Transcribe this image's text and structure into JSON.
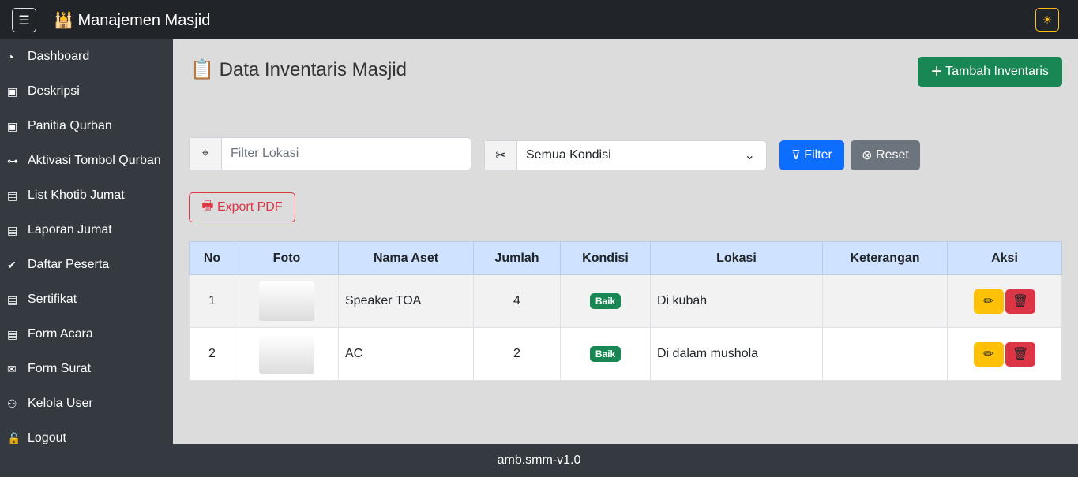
{
  "header": {
    "title": "Manajemen Masjid",
    "menu_icon": "☰",
    "logo_icon": "🕌",
    "theme_icon": "☀"
  },
  "sidebar": {
    "items": [
      {
        "label": "Dashboard",
        "icon": "◔"
      },
      {
        "label": "Deskripsi",
        "icon": "▣"
      },
      {
        "label": "Panitia Qurban",
        "icon": "▣"
      },
      {
        "label": "Aktivasi Tombol Qurban",
        "icon": "⊶"
      },
      {
        "label": "List Khotib Jumat",
        "icon": "▤"
      },
      {
        "label": "Laporan Jumat",
        "icon": "▤"
      },
      {
        "label": "Daftar Peserta",
        "icon": "✔"
      },
      {
        "label": "Sertifikat",
        "icon": "▤"
      },
      {
        "label": "Form Acara",
        "icon": "▤"
      },
      {
        "label": "Form Surat",
        "icon": "✉"
      },
      {
        "label": "Kelola User",
        "icon": "⚇"
      },
      {
        "label": "Logout",
        "icon": "🔓"
      }
    ]
  },
  "page": {
    "title": "Data Inventaris Masjid",
    "title_icon": "📋",
    "add_button": "Tambah Inventaris"
  },
  "filters": {
    "location_placeholder": "Filter Lokasi",
    "condition_value": "Semua Kondisi",
    "filter_button": "Filter",
    "reset_button": "Reset",
    "export_button": "Export PDF"
  },
  "table": {
    "headers": [
      "No",
      "Foto",
      "Nama Aset",
      "Jumlah",
      "Kondisi",
      "Lokasi",
      "Keterangan",
      "Aksi"
    ],
    "rows": [
      {
        "no": "1",
        "name": "Speaker TOA",
        "qty": "4",
        "condition": "Baik",
        "location": "Di kubah",
        "note": ""
      },
      {
        "no": "2",
        "name": "AC",
        "qty": "2",
        "condition": "Baik",
        "location": "Di dalam mushola",
        "note": ""
      }
    ]
  },
  "footer": {
    "text": "amb.smm-v1.0"
  },
  "colors": {
    "primary": "#0d6efd",
    "success": "#198754",
    "danger": "#dc3545",
    "warning": "#ffc107",
    "secondary": "#6c757d"
  }
}
